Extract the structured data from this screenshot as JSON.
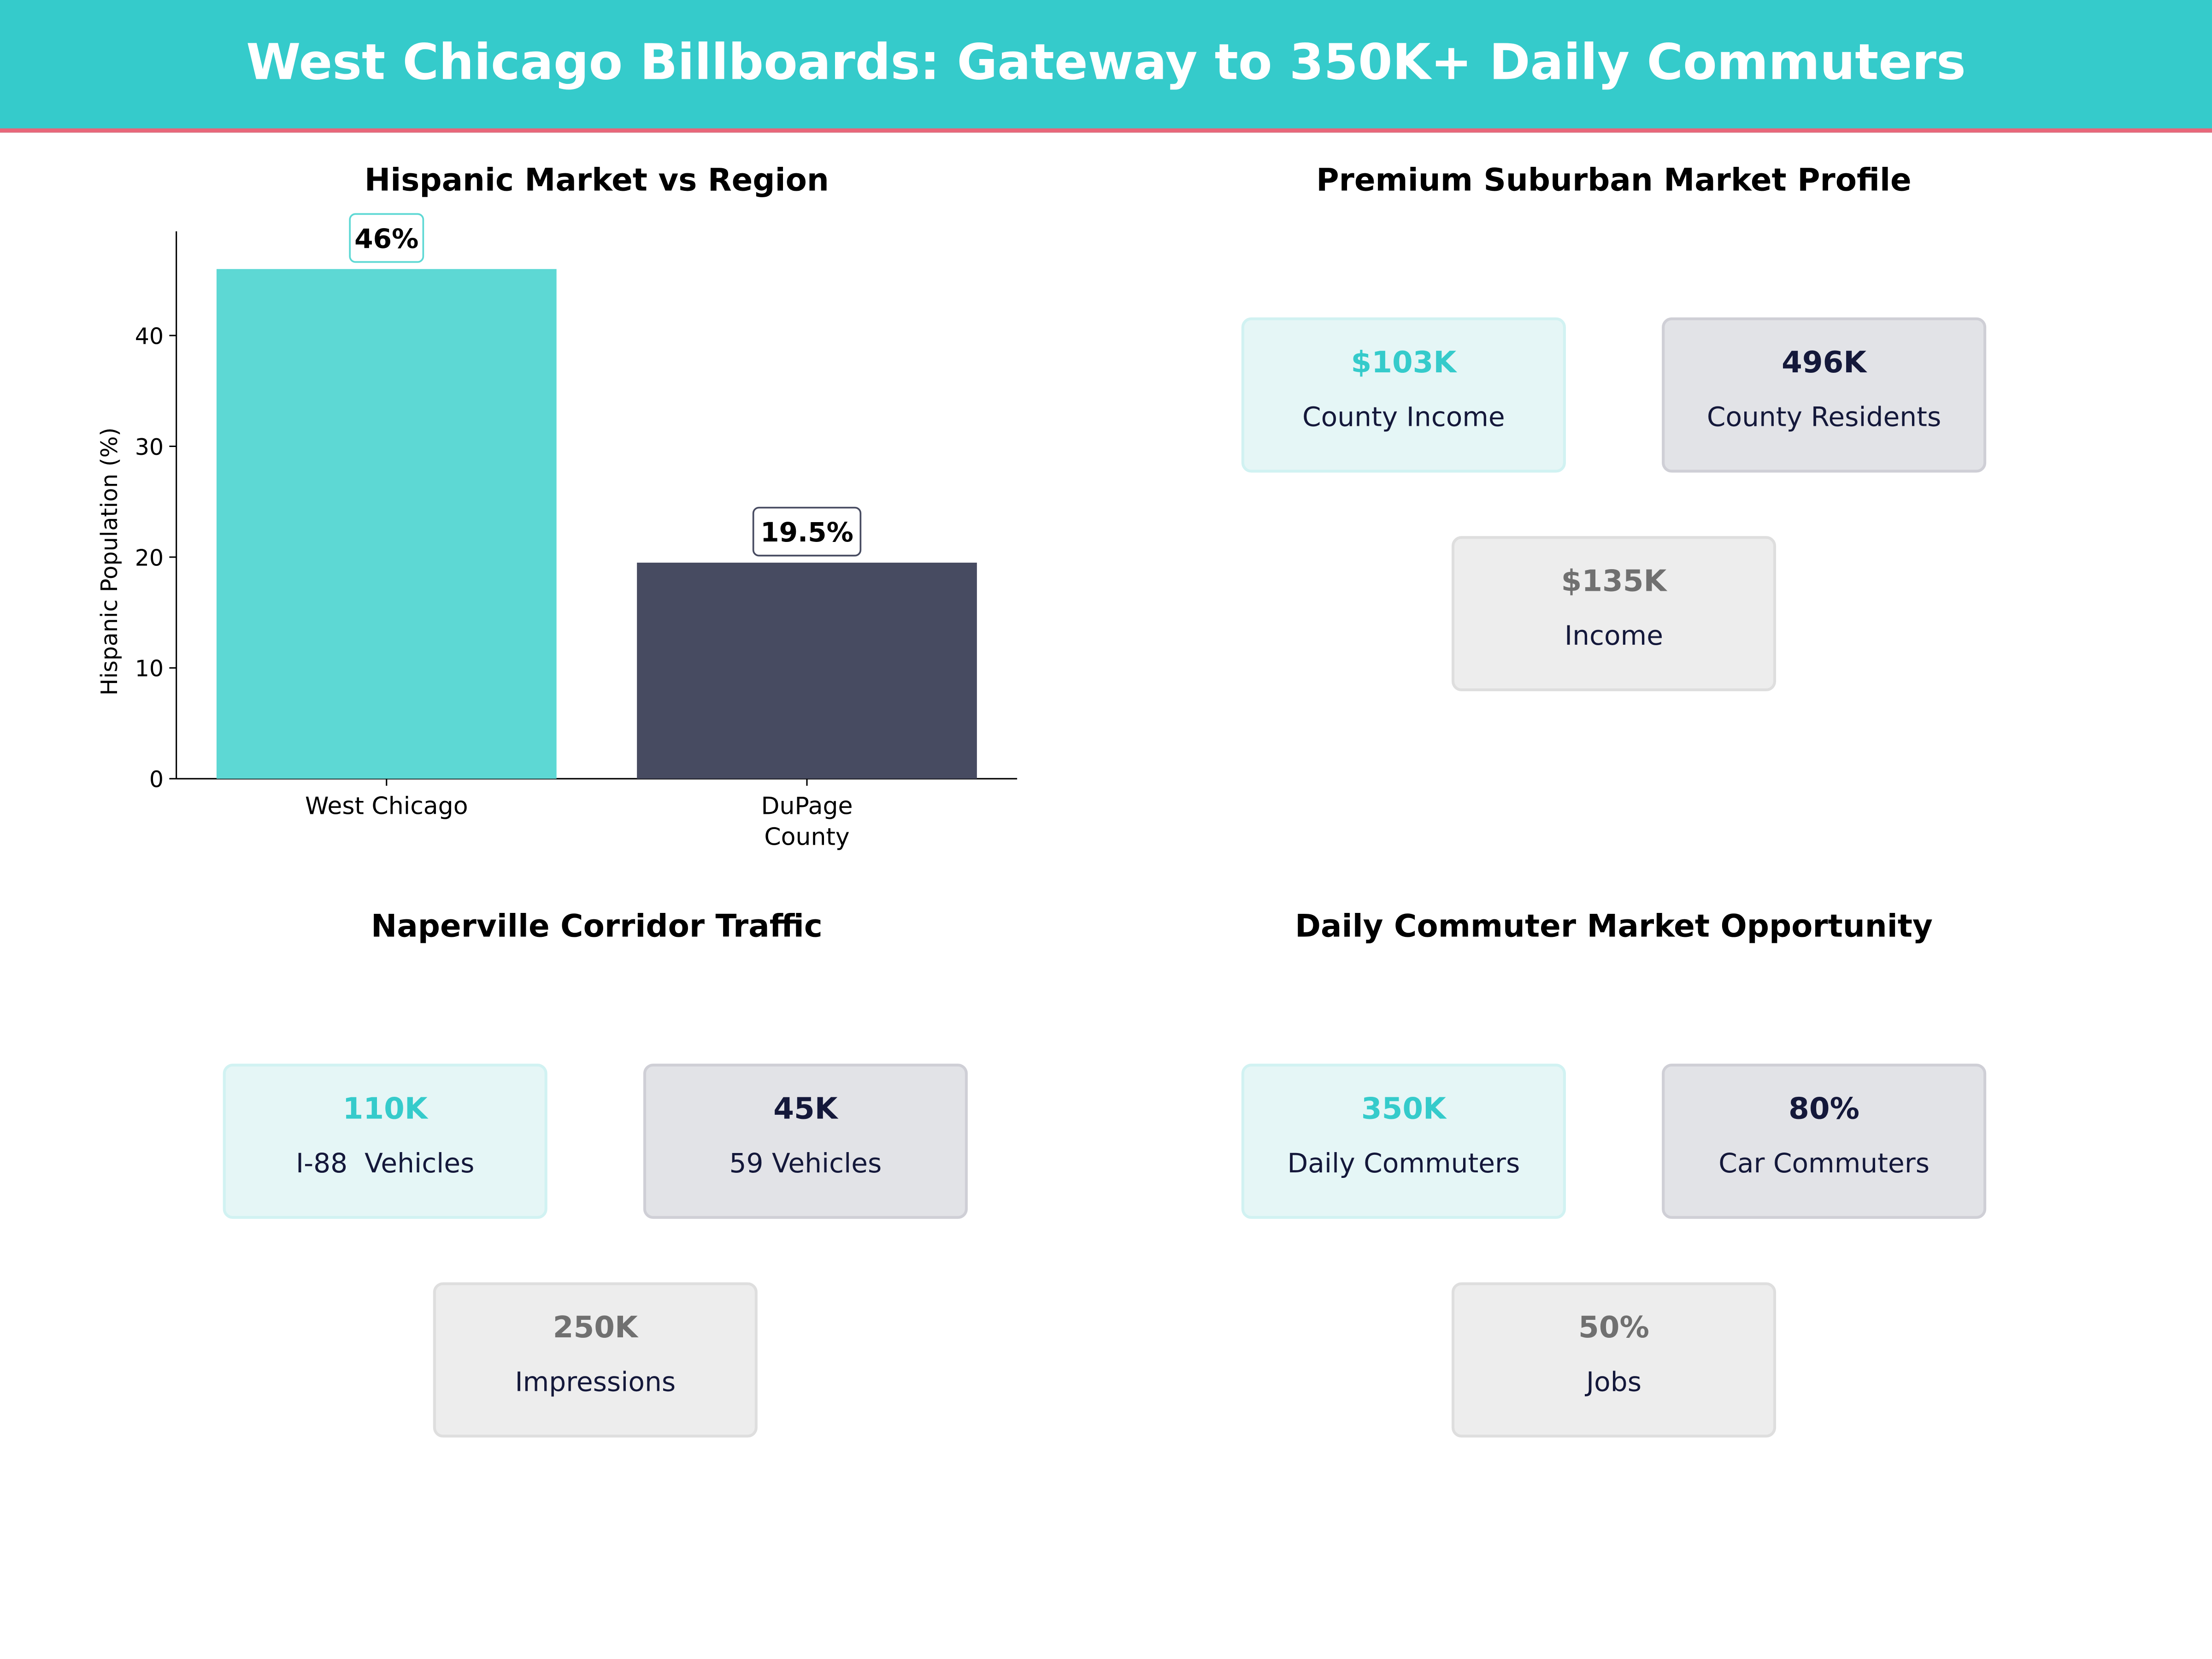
{
  "header": {
    "title": "West Chicago Billboards: Gateway to 350K+ Daily Commuters",
    "bg_color": "#35CBCB",
    "accent_color": "#E8677A"
  },
  "chart_data": {
    "type": "bar",
    "title": "Hispanic Market vs Region",
    "categories": [
      "West Chicago",
      "DuPage\nCounty"
    ],
    "values": [
      46,
      19.5
    ],
    "data_labels": [
      "46%",
      "19.5%"
    ],
    "colors": [
      "#5DD8D4",
      "#474B61"
    ],
    "xlabel": "",
    "ylabel": "Hispanic Population (%)",
    "ylim": [
      0,
      49.4
    ],
    "yticks": [
      0,
      10,
      20,
      30,
      40
    ],
    "grid": false
  },
  "panels": [
    {
      "title": "Premium Suburban Market Profile",
      "cards": [
        {
          "value": "$103K",
          "label": "County Income"
        },
        {
          "value": "496K",
          "label": "County Residents"
        },
        {
          "value": "$135K",
          "label": "Income"
        }
      ]
    },
    {
      "title": "Naperville Corridor Traffic",
      "cards": [
        {
          "value": "110K",
          "label": "I-88  Vehicles"
        },
        {
          "value": "45K",
          "label": "59 Vehicles"
        },
        {
          "value": "250K",
          "label": "Impressions"
        }
      ]
    },
    {
      "title": "Daily Commuter Market Opportunity",
      "cards": [
        {
          "value": "350K",
          "label": "Daily Commuters"
        },
        {
          "value": "80%",
          "label": "Car Commuters"
        },
        {
          "value": "50%",
          "label": "Jobs"
        }
      ]
    }
  ]
}
